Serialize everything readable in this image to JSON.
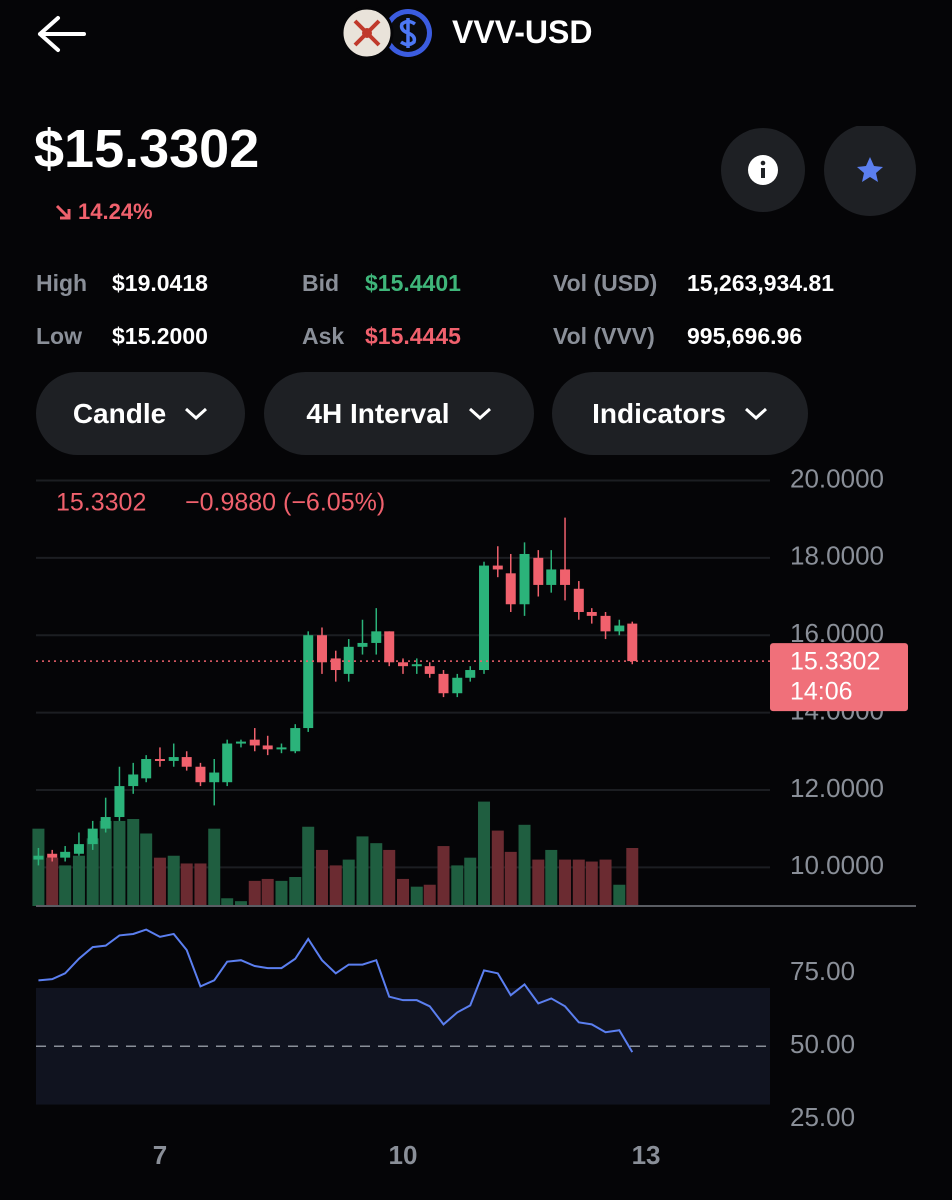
{
  "header": {
    "title": "VVV-USD"
  },
  "price": {
    "value": "$15.3302",
    "change": "14.24%"
  },
  "stats": [
    {
      "label": "High",
      "value": "$19.0418"
    },
    {
      "label": "Low",
      "value": "$15.2000"
    },
    {
      "label": "Bid",
      "value": "$15.4401"
    },
    {
      "label": "Ask",
      "value": "$15.4445"
    },
    {
      "label": "Vol (USD)",
      "value": "15,263,934.81"
    },
    {
      "label": "Vol (VVV)",
      "value": "995,696.96"
    }
  ],
  "buttons": [
    "Candle",
    "4H Interval",
    "Indicators"
  ],
  "chart_data": [
    {
      "type": "candlestick",
      "change_label": "−0.9880 (−6.05%)",
      "x": [
        5.5,
        5.67,
        5.83,
        6,
        6.17,
        6.33,
        6.5,
        6.67,
        6.83,
        7,
        7.17,
        7.33,
        7.5,
        7.67,
        7.83,
        8,
        8.17,
        8.33,
        8.5,
        8.67,
        8.83,
        9,
        9.17,
        9.33,
        9.5,
        9.67,
        9.83,
        10,
        10.17,
        10.33,
        10.5,
        10.67,
        10.83,
        11,
        11.17,
        11.33,
        11.5,
        11.67,
        11.83,
        12,
        12.17,
        12.33,
        12.5,
        12.67,
        12.83
      ],
      "open": [
        10.2,
        10.35,
        10.25,
        10.35,
        10.6,
        11.0,
        11.3,
        12.1,
        12.3,
        12.8,
        12.75,
        12.85,
        12.6,
        12.2,
        12.2,
        13.2,
        13.3,
        13.15,
        13.05,
        13.0,
        13.6,
        16.0,
        15.4,
        15.0,
        15.7,
        15.8,
        16.1,
        15.3,
        15.2,
        15.2,
        15.0,
        14.5,
        14.9,
        15.1,
        17.8,
        17.6,
        16.8,
        18.0,
        17.3,
        17.7,
        17.2,
        16.6,
        16.5,
        16.1,
        16.3
      ],
      "high": [
        10.5,
        10.45,
        10.55,
        10.9,
        11.2,
        11.8,
        12.6,
        12.7,
        12.9,
        13.1,
        13.2,
        13.0,
        12.7,
        12.8,
        13.3,
        13.3,
        13.6,
        13.4,
        13.2,
        13.7,
        16.1,
        16.2,
        15.6,
        15.9,
        16.4,
        16.7,
        16.1,
        15.4,
        15.4,
        15.3,
        15.1,
        15.0,
        15.2,
        17.9,
        18.3,
        18.1,
        18.4,
        18.2,
        18.2,
        19.04,
        17.4,
        16.7,
        16.6,
        16.4,
        16.35
      ],
      "low": [
        10.05,
        10.15,
        10.15,
        10.3,
        10.45,
        10.9,
        11.2,
        11.9,
        12.2,
        12.6,
        12.6,
        12.5,
        12.1,
        11.6,
        12.1,
        13.1,
        13.0,
        12.9,
        12.95,
        12.95,
        13.5,
        15.0,
        14.8,
        14.8,
        15.5,
        15.5,
        15.2,
        15.0,
        15.0,
        14.9,
        14.4,
        14.4,
        14.8,
        15.0,
        17.5,
        16.6,
        16.5,
        17.0,
        17.1,
        16.9,
        16.4,
        16.3,
        15.9,
        16.0,
        15.25
      ],
      "close": [
        10.3,
        10.25,
        10.4,
        10.6,
        11.0,
        11.3,
        12.1,
        12.4,
        12.8,
        12.75,
        12.85,
        12.6,
        12.2,
        12.45,
        13.2,
        13.25,
        13.15,
        13.05,
        13.1,
        13.6,
        16.0,
        15.3,
        15.1,
        15.7,
        15.8,
        16.1,
        15.3,
        15.2,
        15.25,
        15.0,
        14.5,
        14.9,
        15.1,
        17.8,
        17.7,
        16.8,
        18.1,
        17.3,
        17.7,
        17.3,
        16.6,
        16.5,
        16.1,
        16.25,
        15.3302
      ],
      "volume": [
        80,
        50,
        42,
        52,
        70,
        88,
        88,
        90,
        75,
        50,
        52,
        44,
        44,
        80,
        8,
        5,
        26,
        28,
        26,
        30,
        82,
        58,
        42,
        48,
        72,
        65,
        58,
        28,
        20,
        22,
        62,
        42,
        50,
        108,
        78,
        56,
        84,
        48,
        58,
        48,
        48,
        46,
        48,
        22,
        60
      ],
      "volume_ylim": [
        0,
        120
      ],
      "xlim": [
        5.47,
        14.53
      ],
      "xticks": [
        7,
        10,
        13
      ],
      "ylim": [
        9,
        20.4
      ],
      "yticks": [
        {
          "value": 10,
          "label": "10.0000"
        },
        {
          "value": 12,
          "label": "12.0000"
        },
        {
          "value": 14,
          "label": "14.0000"
        },
        {
          "value": 16,
          "label": "16.0000"
        },
        {
          "value": 18,
          "label": "18.0000"
        },
        {
          "value": 20,
          "label": "20.0000"
        }
      ],
      "grid": true,
      "up_color": "#2bb37a",
      "down_color": "#f0616d",
      "price_line": 15.3302,
      "countdown": "14:06"
    },
    {
      "type": "line",
      "values": [
        72.6,
        73,
        75,
        80,
        84,
        84.5,
        88,
        88.5,
        90,
        87.5,
        88.5,
        83,
        70.5,
        72.6,
        79,
        79.5,
        77.5,
        76.8,
        76.8,
        80,
        86.8,
        79.5,
        75,
        78,
        78,
        79.5,
        67,
        65.8,
        65.8,
        63.7,
        57.5,
        61.6,
        64,
        76,
        75,
        67.5,
        71.2,
        64.7,
        66.4,
        63.7,
        58.2,
        57.5,
        54.8,
        55.5,
        48
      ],
      "ylim": [
        23,
        95
      ],
      "yticks": [
        {
          "value": 25,
          "label": "25.00"
        },
        {
          "value": 50,
          "label": "50.00"
        },
        {
          "value": 75,
          "label": "75.00"
        }
      ],
      "reference_line": 50,
      "band": [
        30,
        70
      ],
      "color": "#5b7ff0"
    }
  ]
}
